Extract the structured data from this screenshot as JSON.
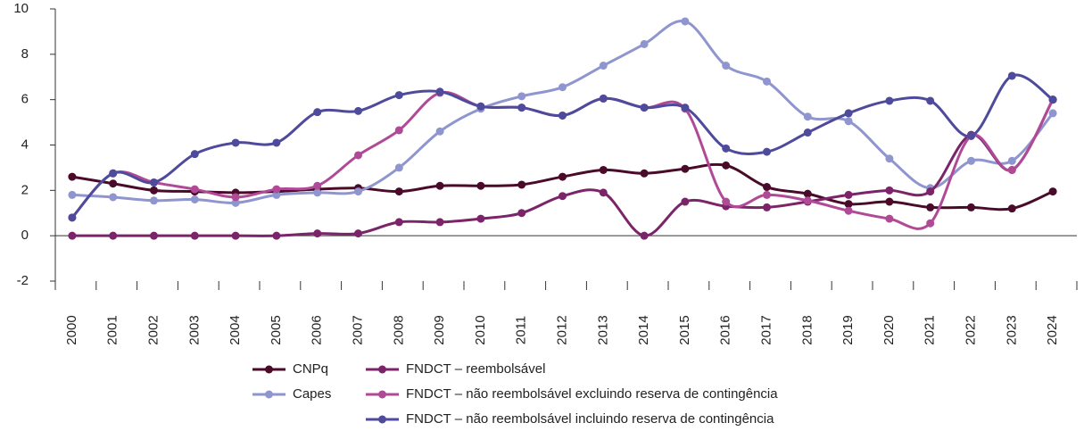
{
  "chart_data": {
    "type": "line",
    "categories": [
      "2000",
      "2001",
      "2002",
      "2003",
      "2004",
      "2005",
      "2006",
      "2007",
      "2008",
      "2009",
      "2010",
      "2011",
      "2012",
      "2013",
      "2014",
      "2015",
      "2016",
      "2017",
      "2018",
      "2019",
      "2020",
      "2021",
      "2022",
      "2023",
      "2024"
    ],
    "series": [
      {
        "name": "CNPq",
        "color": "#4a0a2a",
        "values": [
          2.6,
          2.3,
          2.0,
          1.95,
          1.9,
          1.95,
          2.05,
          2.1,
          1.95,
          2.2,
          2.2,
          2.25,
          2.6,
          2.9,
          2.75,
          2.95,
          3.1,
          2.15,
          1.85,
          1.4,
          1.5,
          1.25,
          1.25,
          1.2,
          1.95
        ]
      },
      {
        "name": "Capes",
        "color": "#8f95cf",
        "values": [
          1.8,
          1.7,
          1.55,
          1.6,
          1.45,
          1.8,
          1.9,
          1.95,
          3.0,
          4.6,
          5.6,
          6.15,
          6.55,
          7.5,
          8.45,
          9.45,
          7.5,
          6.8,
          5.25,
          5.05,
          3.4,
          2.1,
          3.3,
          3.3,
          5.4
        ]
      },
      {
        "name": "FNDCT – reembolsável",
        "color": "#7b2469",
        "values": [
          0,
          0,
          0,
          0,
          0,
          0,
          0.1,
          0.1,
          0.6,
          0.6,
          0.75,
          1.0,
          1.75,
          1.9,
          0,
          1.5,
          1.3,
          1.25,
          1.5,
          1.8,
          2.0,
          1.95,
          4.45,
          2.9,
          6.0
        ]
      },
      {
        "name": "FNDCT – não reembolsável excluindo reserva de contingência",
        "color": "#b04a96",
        "values": [
          0.8,
          2.75,
          2.35,
          2.05,
          1.7,
          2.05,
          2.2,
          3.55,
          4.65,
          6.3,
          5.7,
          5.65,
          5.3,
          6.05,
          5.65,
          5.6,
          1.5,
          1.8,
          1.55,
          1.1,
          0.75,
          0.55,
          4.4,
          2.9,
          6.0
        ]
      },
      {
        "name": "FNDCT – não reembolsável incluindo reserva de contingência",
        "color": "#4e4a9c",
        "values": [
          0.8,
          2.75,
          2.35,
          3.6,
          4.1,
          4.1,
          5.45,
          5.5,
          6.2,
          6.35,
          5.7,
          5.65,
          5.3,
          6.05,
          5.65,
          5.65,
          3.85,
          3.7,
          4.55,
          5.4,
          5.95,
          5.95,
          4.4,
          7.05,
          6.0
        ]
      }
    ],
    "ylim": [
      -2,
      10
    ],
    "yticks": [
      -2,
      0,
      2,
      4,
      6,
      8,
      10
    ],
    "grid": false
  }
}
